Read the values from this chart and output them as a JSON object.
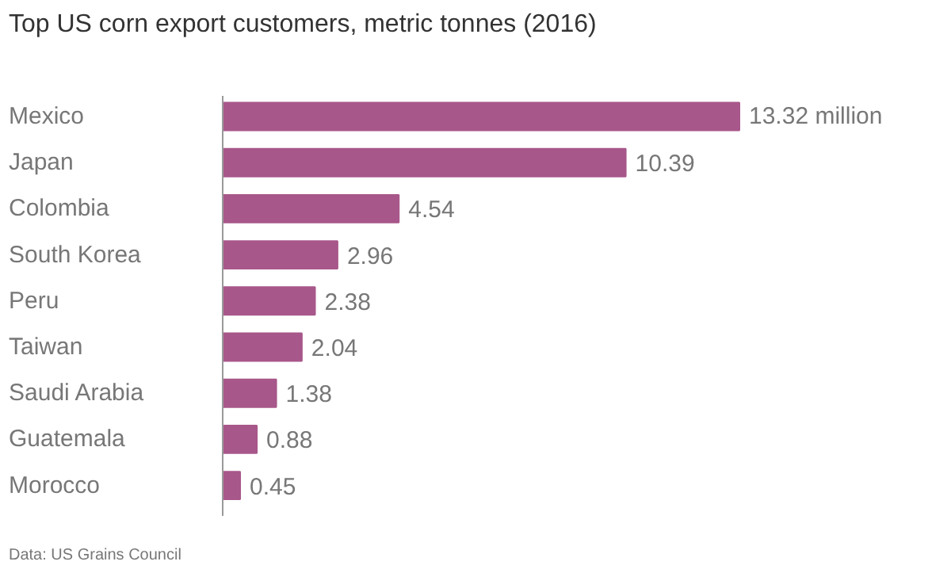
{
  "chart_data": {
    "type": "bar",
    "orientation": "horizontal",
    "title": "Top US corn export customers, metric tonnes (2016)",
    "categories": [
      "Mexico",
      "Japan",
      "Colombia",
      "South Korea",
      "Peru",
      "Taiwan",
      "Saudi Arabia",
      "Guatemala",
      "Morocco"
    ],
    "values": [
      13.32,
      10.39,
      4.54,
      2.96,
      2.38,
      2.04,
      1.38,
      0.88,
      0.45
    ],
    "value_labels": [
      "13.32 million",
      "10.39",
      "4.54",
      "2.96",
      "2.38",
      "2.04",
      "1.38",
      "0.88",
      "0.45"
    ],
    "color": "#a8578a",
    "grid": false,
    "annotations": [
      "Data: US Grains Council"
    ]
  }
}
